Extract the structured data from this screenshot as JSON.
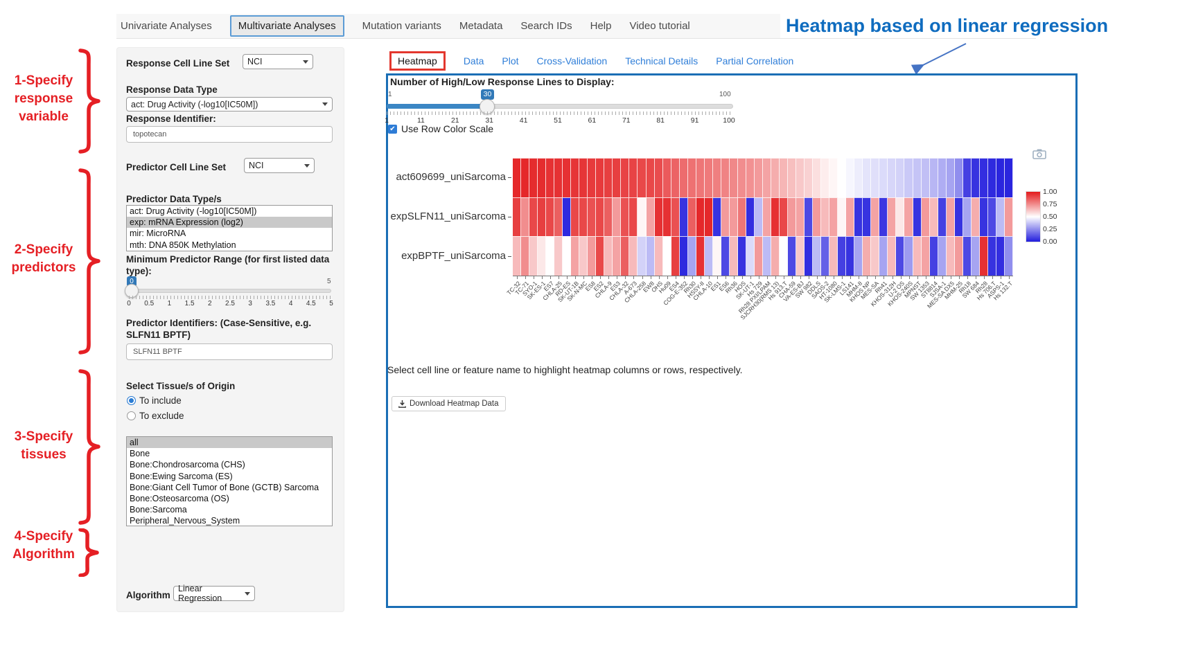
{
  "colors": {
    "panel_border": "#1a6eb5",
    "link_blue": "#2f7ed8",
    "slider_blue": "#3179b8",
    "annotation_red": "#e51f24",
    "title_blue": "#0f6cbf",
    "nav_active_border": "#5b9bd5",
    "tab_active_border": "#e3372e",
    "heat_high": "#e31a1c",
    "heat_low": "#211cdd",
    "selected_option_bg": "#c9c9c9"
  },
  "nav": {
    "items": [
      {
        "label": "Univariate Analyses",
        "active": false
      },
      {
        "label": "Multivariate Analyses",
        "active": true
      },
      {
        "label": "Mutation variants",
        "active": false
      },
      {
        "label": "Metadata",
        "active": false
      },
      {
        "label": "Search IDs",
        "active": false
      },
      {
        "label": "Help",
        "active": false
      },
      {
        "label": "Video tutorial",
        "active": false
      }
    ]
  },
  "annotation": {
    "title": "Heatmap based on linear regression",
    "steps": [
      {
        "label": "1-Specify\nresponse\nvariable"
      },
      {
        "label": "2-Specify\npredictors"
      },
      {
        "label": "3-Specify\ntissues"
      },
      {
        "label": "4-Specify\nAlgorithm"
      }
    ]
  },
  "sidebar": {
    "response_cell_line_set": {
      "label": "Response Cell Line Set",
      "value": "NCI"
    },
    "response_data_type": {
      "label": "Response Data Type",
      "value": "act: Drug Activity (-log10[IC50M])"
    },
    "response_identifier": {
      "label": "Response Identifier:",
      "value": "topotecan"
    },
    "predictor_cell_line_set": {
      "label": "Predictor Cell Line Set",
      "value": "NCI"
    },
    "predictor_data_types": {
      "label": "Predictor Data Type/s",
      "options": [
        {
          "label": "act: Drug Activity (-log10[IC50M])",
          "selected": false
        },
        {
          "label": "exp: mRNA Expression (log2)",
          "selected": true
        },
        {
          "label": "mir: MicroRNA",
          "selected": false
        },
        {
          "label": "mth: DNA 850K Methylation",
          "selected": false
        }
      ]
    },
    "min_predictor_range": {
      "label": "Minimum Predictor Range (for first listed data type):",
      "value": "0",
      "max_label": "5",
      "ticks": [
        "0",
        "0.5",
        "1",
        "1.5",
        "2",
        "2.5",
        "3",
        "3.5",
        "4",
        "4.5",
        "5"
      ]
    },
    "predictor_identifiers": {
      "label": "Predictor Identifiers: (Case-Sensitive, e.g. SLFN11 BPTF)",
      "value": "SLFN11 BPTF"
    },
    "tissue": {
      "label": "Select Tissue/s of Origin",
      "include_label": "To include",
      "exclude_label": "To exclude",
      "include_selected": true,
      "options": [
        {
          "label": "all",
          "selected": true
        },
        {
          "label": "Bone",
          "selected": false
        },
        {
          "label": "Bone:Chondrosarcoma (CHS)",
          "selected": false
        },
        {
          "label": "Bone:Ewing Sarcoma (ES)",
          "selected": false
        },
        {
          "label": "Bone:Giant Cell Tumor of Bone (GCTB) Sarcoma",
          "selected": false
        },
        {
          "label": "Bone:Osteosarcoma (OS)",
          "selected": false
        },
        {
          "label": "Bone:Sarcoma",
          "selected": false
        },
        {
          "label": "Peripheral_Nervous_System",
          "selected": false
        }
      ]
    },
    "algorithm": {
      "label": "Algorithm",
      "value": "Linear Regression"
    }
  },
  "main": {
    "tabs": [
      {
        "label": "Heatmap",
        "active": true
      },
      {
        "label": "Data",
        "active": false
      },
      {
        "label": "Plot",
        "active": false
      },
      {
        "label": "Cross-Validation",
        "active": false
      },
      {
        "label": "Technical Details",
        "active": false
      },
      {
        "label": "Partial Correlation",
        "active": false
      }
    ],
    "response_lines_slider": {
      "label": "Number of High/Low Response Lines to Display:",
      "min_label": "1",
      "max_label": "100",
      "value": "30",
      "percent": 29,
      "ticks": [
        "1",
        "11",
        "21",
        "31",
        "41",
        "51",
        "61",
        "71",
        "81",
        "91",
        "100"
      ]
    },
    "row_color_scale": {
      "label": "Use Row Color Scale",
      "checked": true
    },
    "help_text": "Select cell line or feature name to highlight heatmap columns or rows, respectively.",
    "download_button": "Download Heatmap Data"
  },
  "chart_data": {
    "type": "heatmap",
    "rows": [
      "act609699_uniSarcoma",
      "expSLFN11_uniSarcoma",
      "expBPTF_uniSarcoma"
    ],
    "columns": [
      "TC-32",
      "TC-71",
      "SYO-1",
      "SK-ES-1",
      "ES7",
      "CHLA-25",
      "RD-ES",
      "SK-UT-1B",
      "SK-N-MC",
      "ES8",
      "ES2",
      "CHLA-9",
      "ES3",
      "CHLA-32",
      "A-673",
      "CHLA-258",
      "EW8",
      "OHS",
      "Hu09",
      "ES4",
      "COG-E-352",
      "Rh30",
      "HSSY-II",
      "CHLA-10",
      "ES1",
      "ES6",
      "Rh36",
      "HOS",
      "SK-UT-1",
      "Hs 729",
      "Rh28 PXI/LPAM",
      "SJCRH30(RMS 13)",
      "Hs 913.T",
      "CHA-59",
      "VA-ES-BJ",
      "SW 982",
      "DDLS",
      "SAOS-2",
      "HT-1080",
      "SK-LMS-1",
      "LS141",
      "MHM-8",
      "KHOS NP",
      "MES-SA",
      "Rh41",
      "KHOS-312H",
      "U-2 OS",
      "KHOS-240S",
      "MPNST",
      "SW 1353",
      "ST8814",
      "SJSA-1",
      "MES-SA DX5",
      "MHM-25",
      "Rh18",
      "SW 684",
      "Rh28",
      "Hs 706.T",
      "ASPS-1",
      "Hs 132.T"
    ],
    "values": [
      [
        0.97,
        0.97,
        0.96,
        0.96,
        0.95,
        0.95,
        0.95,
        0.94,
        0.94,
        0.93,
        0.93,
        0.92,
        0.92,
        0.91,
        0.91,
        0.9,
        0.9,
        0.89,
        0.86,
        0.84,
        0.82,
        0.81,
        0.8,
        0.79,
        0.78,
        0.77,
        0.76,
        0.75,
        0.74,
        0.72,
        0.7,
        0.68,
        0.66,
        0.64,
        0.62,
        0.6,
        0.57,
        0.54,
        0.52,
        0.5,
        0.48,
        0.46,
        0.44,
        0.43,
        0.42,
        0.41,
        0.4,
        0.38,
        0.37,
        0.36,
        0.34,
        0.32,
        0.3,
        0.25,
        0.08,
        0.05,
        0.04,
        0.03,
        0.02,
        0.02
      ],
      [
        0.92,
        0.75,
        0.9,
        0.92,
        0.9,
        0.85,
        0.03,
        0.9,
        0.9,
        0.88,
        0.9,
        0.85,
        0.72,
        0.88,
        0.9,
        0.52,
        0.7,
        0.95,
        0.95,
        0.88,
        0.05,
        0.85,
        0.97,
        0.97,
        0.05,
        0.72,
        0.72,
        0.8,
        0.04,
        0.35,
        0.7,
        0.95,
        0.9,
        0.72,
        0.7,
        0.1,
        0.72,
        0.65,
        0.7,
        0.52,
        0.7,
        0.05,
        0.05,
        0.7,
        0.06,
        0.7,
        0.55,
        0.7,
        0.05,
        0.72,
        0.65,
        0.08,
        0.7,
        0.05,
        0.3,
        0.68,
        0.05,
        0.1,
        0.35,
        0.72
      ],
      [
        0.65,
        0.75,
        0.62,
        0.55,
        0.5,
        0.62,
        0.5,
        0.7,
        0.62,
        0.72,
        0.9,
        0.65,
        0.7,
        0.85,
        0.65,
        0.4,
        0.35,
        0.65,
        0.5,
        0.92,
        0.03,
        0.3,
        0.95,
        0.35,
        0.52,
        0.1,
        0.65,
        0.05,
        0.42,
        0.72,
        0.35,
        0.68,
        0.5,
        0.1,
        0.62,
        0.04,
        0.35,
        0.15,
        0.65,
        0.08,
        0.05,
        0.3,
        0.68,
        0.62,
        0.3,
        0.65,
        0.1,
        0.28,
        0.65,
        0.7,
        0.08,
        0.3,
        0.65,
        0.72,
        0.1,
        0.3,
        0.95,
        0.05,
        0.04,
        0.25
      ]
    ],
    "value_range": [
      0,
      1
    ],
    "colorbar_ticks": [
      "1.00",
      "0.75",
      "0.50",
      "0.25",
      "0.00"
    ],
    "colorscale": "red-white-blue (high=red, low=blue)",
    "legend_position": "right"
  }
}
